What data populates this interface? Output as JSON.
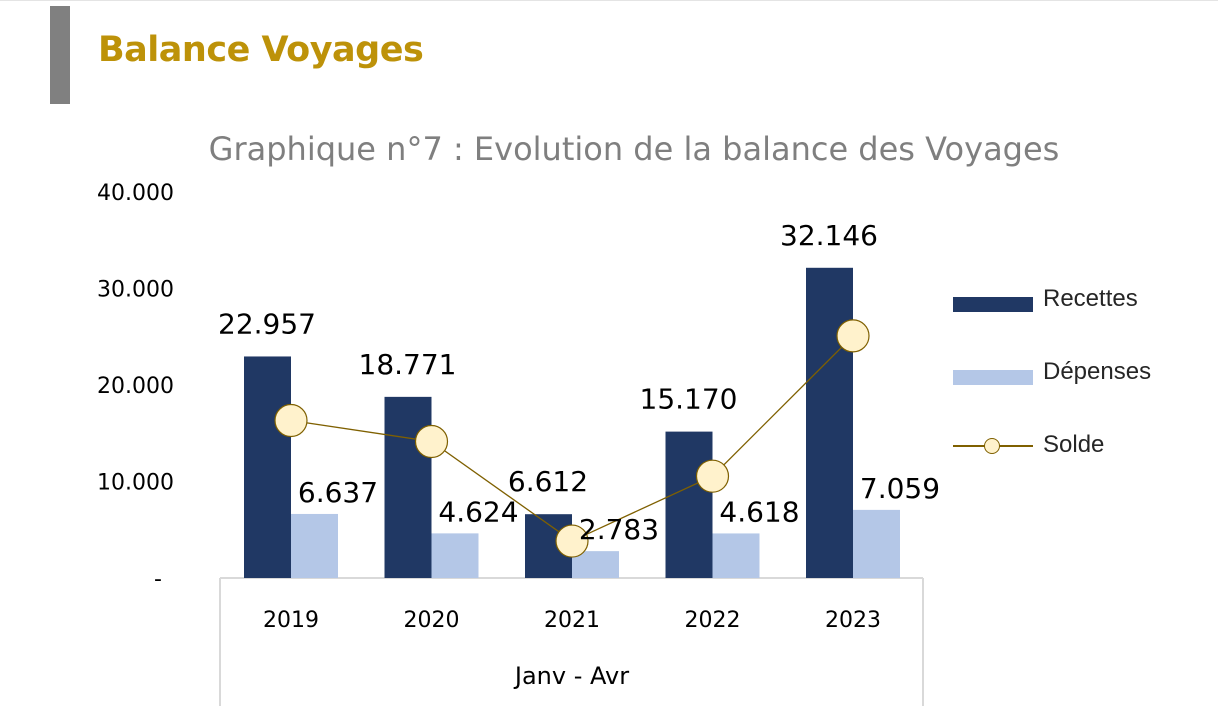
{
  "header": {
    "title": "Balance Voyages"
  },
  "chart_data": {
    "type": "bar",
    "title": "Graphique n°7 : Evolution de la balance des Voyages",
    "categories": [
      "2019",
      "2020",
      "2021",
      "2022",
      "2023"
    ],
    "xlabel": "Janv - Avr",
    "ylabel": "",
    "ylim": [
      0,
      40000
    ],
    "yticks": [
      {
        "value": 0,
        "label": "-"
      },
      {
        "value": 10000,
        "label": "10.000"
      },
      {
        "value": 20000,
        "label": "20.000"
      },
      {
        "value": 30000,
        "label": "30.000"
      },
      {
        "value": 40000,
        "label": "40.000"
      }
    ],
    "series": [
      {
        "name": "Recettes",
        "kind": "bar",
        "color": "#203864",
        "values": [
          22957,
          18771,
          6612,
          15170,
          32146
        ],
        "labels": [
          "22.957",
          "18.771",
          "6.612",
          "15.170",
          "32.146"
        ]
      },
      {
        "name": "Dépenses",
        "kind": "bar",
        "color": "#b4c7e7",
        "values": [
          6637,
          4624,
          2783,
          4618,
          7059
        ],
        "labels": [
          "6.637",
          "4.624",
          "2.783",
          "4.618",
          "7.059"
        ]
      },
      {
        "name": "Solde",
        "kind": "line",
        "color": "#7f6000",
        "marker_fill": "#fff2cc",
        "values": [
          16320,
          14147,
          3829,
          10552,
          25087
        ]
      }
    ],
    "legend_position": "right",
    "grid": false
  }
}
